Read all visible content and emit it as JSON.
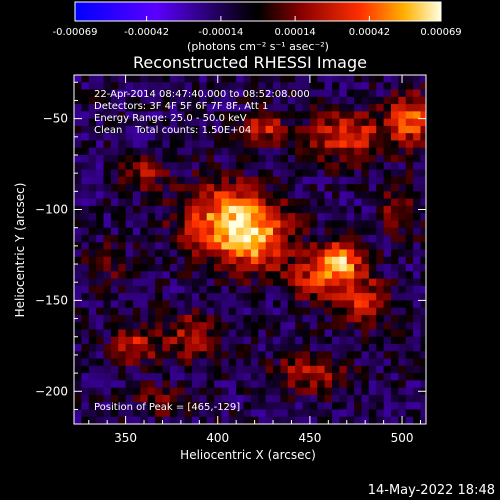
{
  "chart_data": {
    "type": "heatmap",
    "title": "Reconstructed RHESSI Image",
    "xlabel": "Heliocentric X (arcsec)",
    "ylabel": "Heliocentric Y (arcsec)",
    "xlim": [
      322,
      513
    ],
    "ylim": [
      -218,
      -26
    ],
    "x_ticks": [
      350,
      400,
      450,
      500
    ],
    "y_ticks": [
      -50,
      -100,
      -150,
      -200
    ],
    "colorbar": {
      "range": [
        -0.00069,
        0.00069
      ],
      "tick_labels": [
        "-0.00069",
        "-0.00042",
        "-0.00014",
        "0.00014",
        "0.00042",
        "0.00069"
      ],
      "tick_values": [
        -0.00069,
        -0.00042,
        -0.00014,
        0.00014,
        0.00042,
        0.00069
      ],
      "units_label": "(photons cm⁻² s⁻¹ asec⁻²)"
    },
    "annotations": [
      "22-Apr-2014 08:47:40.000 to 08:52:08.000",
      "Detectors: 3F 4F 5F 6F 7F 8F, Att 1",
      "Energy Range: 25.0 - 50.0 keV",
      "Clean    Total counts: 1.50E+04"
    ],
    "peak_label": "Position of Peak = [465,-129]",
    "peak_position": [
      465,
      -129
    ],
    "sources": [
      {
        "x": 405,
        "y": -105,
        "amp": 0.00058,
        "sx": 18,
        "sy": 14
      },
      {
        "x": 420,
        "y": -118,
        "amp": 0.00045,
        "sx": 14,
        "sy": 12
      },
      {
        "x": 465,
        "y": -129,
        "amp": 0.00069,
        "sx": 9,
        "sy": 8
      },
      {
        "x": 478,
        "y": -150,
        "amp": 0.0004,
        "sx": 10,
        "sy": 10
      },
      {
        "x": 450,
        "y": -140,
        "amp": 0.0003,
        "sx": 10,
        "sy": 8
      },
      {
        "x": 470,
        "y": -60,
        "amp": 0.00045,
        "sx": 16,
        "sy": 9
      },
      {
        "x": 505,
        "y": -50,
        "amp": 0.0005,
        "sx": 9,
        "sy": 10
      },
      {
        "x": 425,
        "y": -55,
        "amp": 0.0004,
        "sx": 8,
        "sy": 6
      },
      {
        "x": 360,
        "y": -80,
        "amp": 0.0003,
        "sx": 8,
        "sy": 6
      },
      {
        "x": 355,
        "y": -175,
        "amp": 0.00038,
        "sx": 9,
        "sy": 7
      },
      {
        "x": 385,
        "y": -170,
        "amp": 0.00035,
        "sx": 10,
        "sy": 9
      },
      {
        "x": 450,
        "y": -190,
        "amp": 0.0003,
        "sx": 16,
        "sy": 8
      },
      {
        "x": 370,
        "y": -205,
        "amp": 0.00022,
        "sx": 12,
        "sy": 6
      },
      {
        "x": 500,
        "y": -100,
        "amp": 0.0003,
        "sx": 8,
        "sy": 10
      },
      {
        "x": 340,
        "y": -130,
        "amp": 0.00018,
        "sx": 8,
        "sy": 8
      }
    ],
    "background_level": -0.0001
  },
  "footer": {
    "timestamp": "14-May-2022 18:48"
  },
  "colors": {
    "background": "#000000",
    "text": "#ffffff",
    "colormap": [
      "#0000ff",
      "#5a00ff",
      "#000000",
      "#7a0000",
      "#ff2a00",
      "#ffa000",
      "#ffff40",
      "#ffffff"
    ]
  }
}
